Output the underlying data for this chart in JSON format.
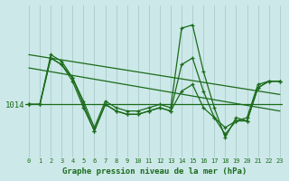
{
  "bg_color": "#cce8e8",
  "line_color": "#1a6b1a",
  "grid_color": "#aacccc",
  "title": "Graphe pression niveau de la mer (hPa)",
  "ylabel_ref": 1014,
  "x_ticks": [
    0,
    1,
    2,
    3,
    4,
    5,
    6,
    7,
    8,
    9,
    10,
    11,
    12,
    13,
    14,
    15,
    16,
    17,
    18,
    19,
    20,
    21,
    22,
    23
  ],
  "series": [
    [
      1014.0,
      1014.0,
      1021.5,
      1020.5,
      1018.0,
      1014.5,
      1010.5,
      1014.5,
      1013.5,
      1013.0,
      1013.0,
      1013.5,
      1014.0,
      1013.5,
      1025.5,
      1026.0,
      1019.0,
      1013.5,
      1009.0,
      1012.0,
      1011.5,
      1016.5,
      1017.5,
      1017.5
    ],
    [
      1014.0,
      1014.0,
      1021.0,
      1020.0,
      1017.5,
      1013.5,
      1010.0,
      1014.0,
      1013.0,
      1012.5,
      1012.5,
      1013.0,
      1013.5,
      1013.0,
      1016.0,
      1017.0,
      1013.5,
      1012.0,
      1010.5,
      1011.5,
      1012.0,
      1017.0,
      1017.5,
      1017.5
    ],
    [
      1014.0,
      1014.0,
      1021.0,
      1020.0,
      1018.0,
      1014.0,
      1010.0,
      1014.0,
      1013.0,
      1012.5,
      1012.5,
      1013.0,
      1013.5,
      1013.0,
      1020.0,
      1021.0,
      1016.0,
      1012.0,
      1009.5,
      1011.5,
      1011.5,
      1016.5,
      1017.5,
      1017.5
    ]
  ],
  "trend_lines": [
    {
      "x": [
        0,
        23
      ],
      "y": [
        1021.5,
        1015.5
      ]
    },
    {
      "x": [
        0,
        23
      ],
      "y": [
        1019.5,
        1013.0
      ]
    }
  ],
  "ylim": [
    1006,
    1029
  ],
  "xlim": [
    -0.3,
    23.3
  ],
  "figsize": [
    3.2,
    2.0
  ],
  "dpi": 100
}
